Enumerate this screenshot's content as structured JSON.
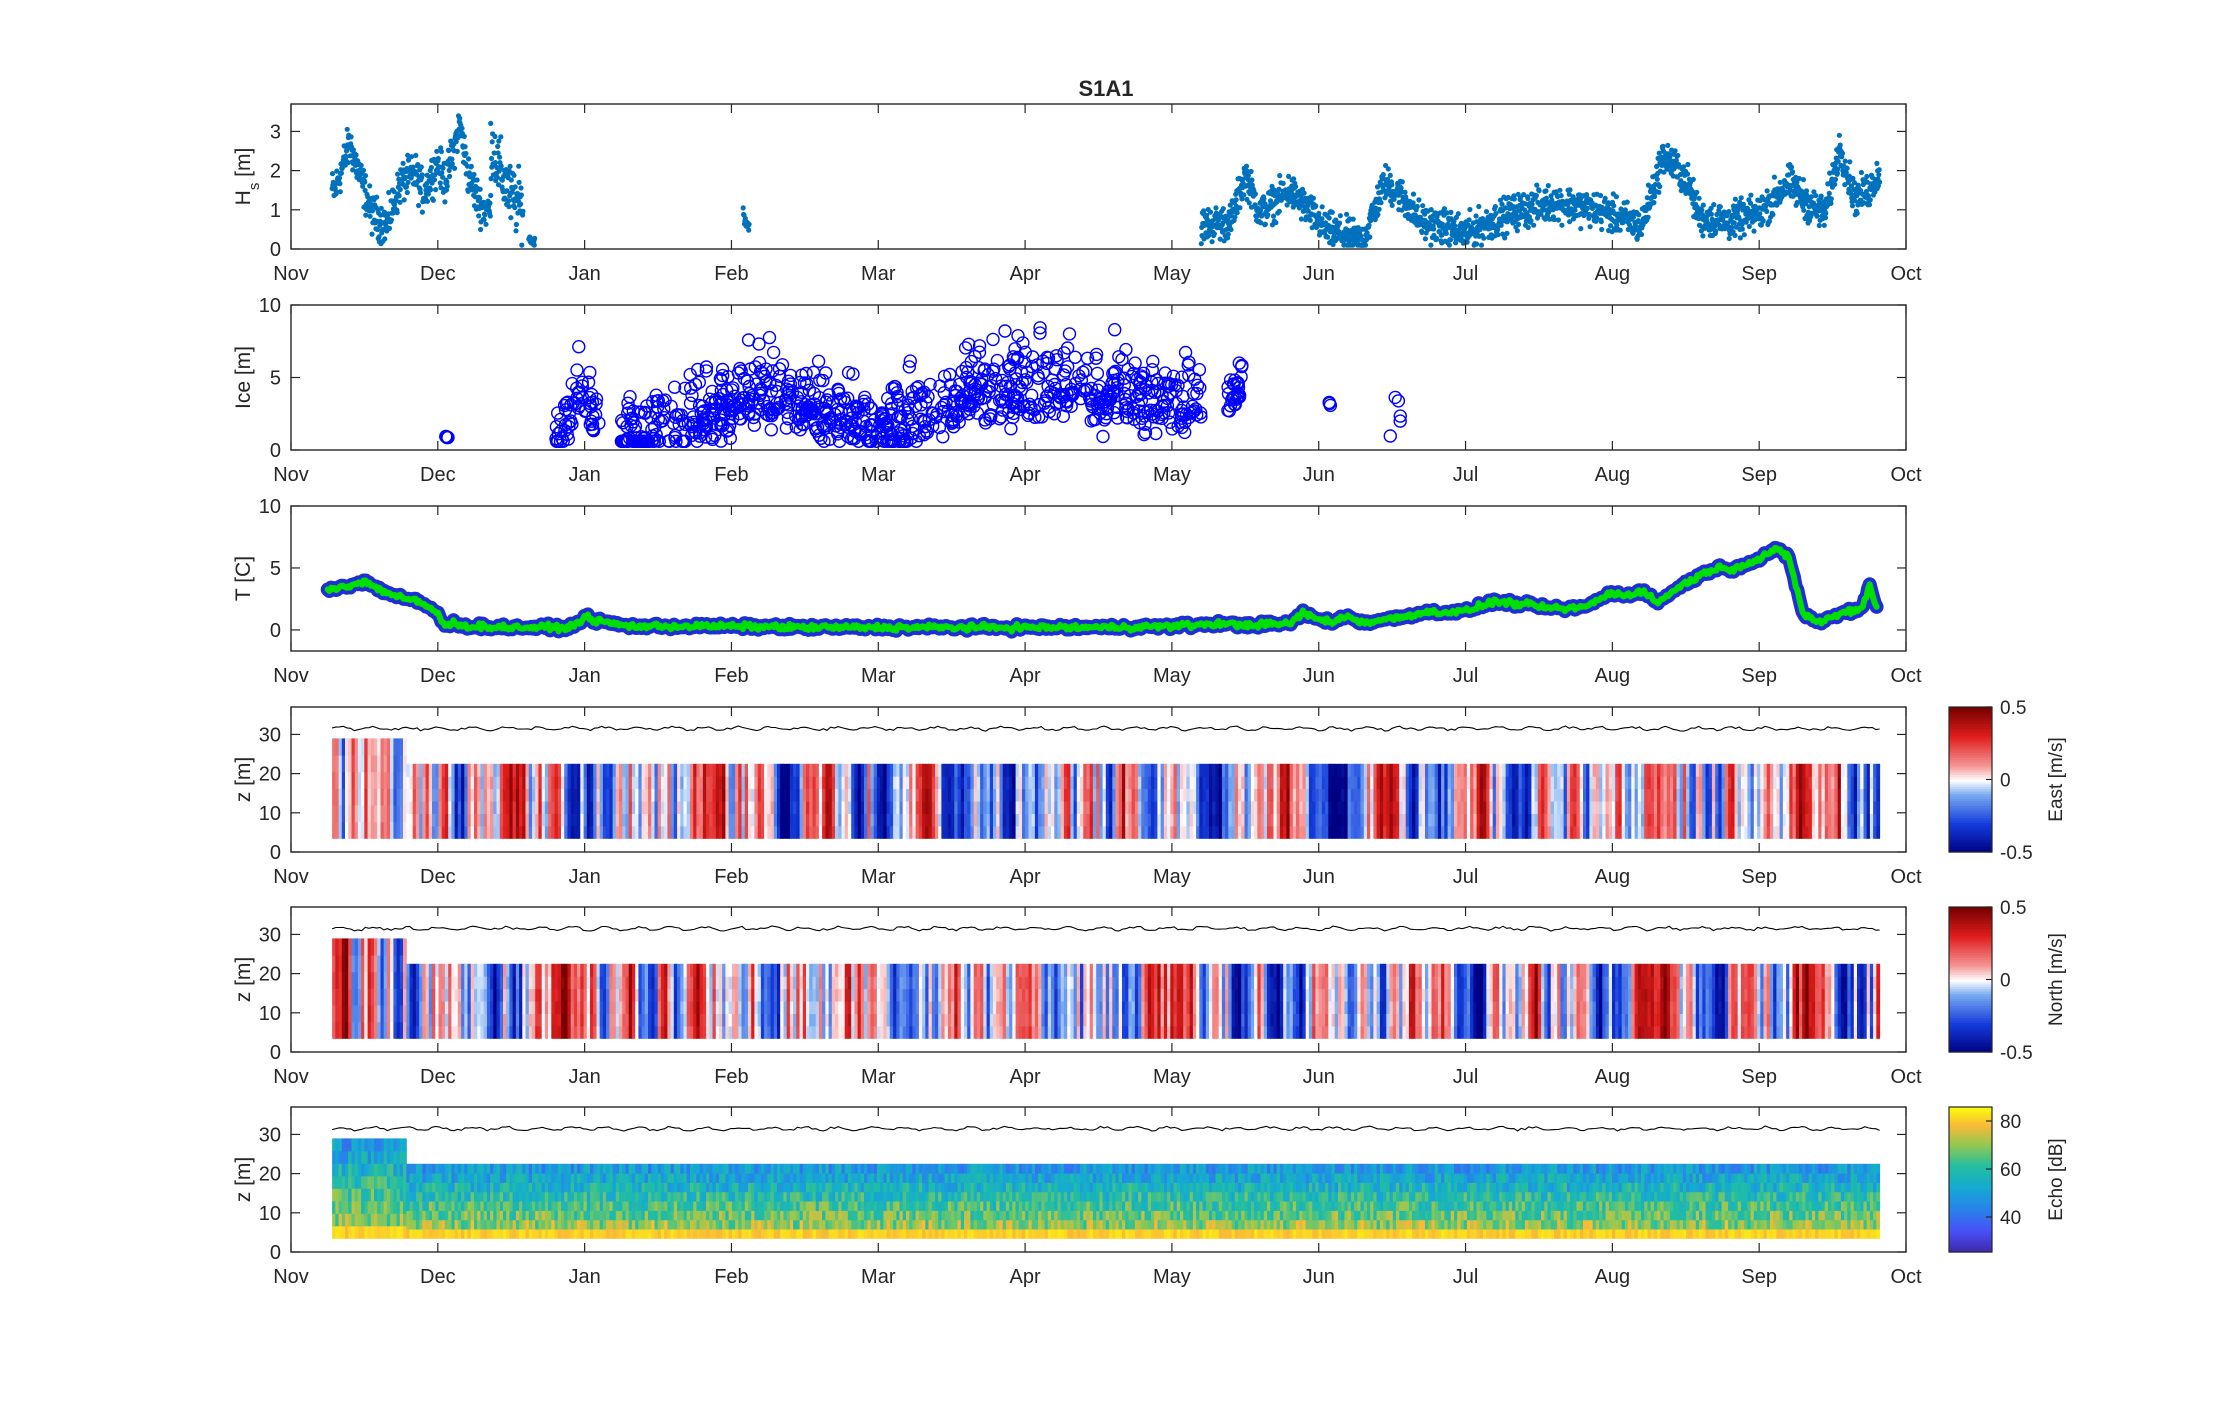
{
  "title": "S1A1",
  "months": [
    "Nov",
    "Dec",
    "Jan",
    "Feb",
    "Mar",
    "Apr",
    "May",
    "Jun",
    "Jul",
    "Aug",
    "Sep",
    "Oct"
  ],
  "colors": {
    "hs_points": "#0072BD",
    "ice_markers": "#0000FF",
    "temp_outline": "#1f2fd6",
    "temp_line": "#00e000",
    "surface_line": "#000000",
    "axis": "#262626"
  },
  "chart_data": [
    {
      "type": "scatter",
      "name": "hs",
      "ylabel_main": "H",
      "ylabel_sub": "s",
      "ylabel_unit": " [m]",
      "ylim": [
        0,
        3.7
      ],
      "yticks": [
        0,
        1,
        2,
        3
      ],
      "segments": [
        {
          "start": 0.28,
          "end": 1.36,
          "pts": [
            [
              0.3,
              1.5
            ],
            [
              0.4,
              2.7
            ],
            [
              0.55,
              0.9
            ],
            [
              0.65,
              0.6
            ],
            [
              0.75,
              1.7
            ],
            [
              0.85,
              1.9
            ],
            [
              0.9,
              1.4
            ],
            [
              1.0,
              2.2
            ],
            [
              1.05,
              1.7
            ],
            [
              1.1,
              2.4
            ],
            [
              1.15,
              3.2
            ],
            [
              1.2,
              2.0
            ],
            [
              1.28,
              1.2
            ],
            [
              1.32,
              1.0
            ]
          ],
          "noise": 0.25
        },
        {
          "start": 1.36,
          "end": 1.58,
          "pts": [
            [
              1.36,
              2.8
            ],
            [
              1.42,
              2.0
            ],
            [
              1.5,
              1.3
            ],
            [
              1.56,
              1.1
            ]
          ],
          "noise": 0.4
        },
        {
          "start": 1.62,
          "end": 1.66,
          "pts": [
            [
              1.62,
              0.25
            ],
            [
              1.65,
              0.2
            ]
          ],
          "noise": 0.05
        },
        {
          "start": 3.08,
          "end": 3.12,
          "pts": [
            [
              3.08,
              0.95
            ],
            [
              3.1,
              0.7
            ],
            [
              3.12,
              0.55
            ]
          ],
          "noise": 0.1
        },
        {
          "start": 6.2,
          "end": 10.82,
          "pts": [
            [
              6.2,
              0.6
            ],
            [
              6.4,
              0.7
            ],
            [
              6.5,
              1.9
            ],
            [
              6.6,
              0.9
            ],
            [
              6.8,
              1.5
            ],
            [
              6.9,
              1.1
            ],
            [
              7.05,
              0.5
            ],
            [
              7.3,
              0.2
            ],
            [
              7.45,
              1.7
            ],
            [
              7.55,
              1.4
            ],
            [
              7.7,
              0.7
            ],
            [
              8.0,
              0.4
            ],
            [
              8.3,
              0.9
            ],
            [
              8.6,
              1.2
            ],
            [
              8.9,
              1.0
            ],
            [
              9.2,
              0.6
            ],
            [
              9.35,
              2.4
            ],
            [
              9.5,
              1.8
            ],
            [
              9.6,
              0.8
            ],
            [
              9.8,
              0.7
            ],
            [
              10.0,
              0.9
            ],
            [
              10.2,
              1.7
            ],
            [
              10.35,
              1.1
            ],
            [
              10.45,
              0.9
            ],
            [
              10.55,
              2.6
            ],
            [
              10.65,
              1.3
            ],
            [
              10.75,
              1.5
            ],
            [
              10.82,
              2.0
            ]
          ],
          "noise": 0.22
        }
      ]
    },
    {
      "type": "scatter",
      "name": "ice",
      "ylabel": "Ice [m]",
      "ylim": [
        0,
        10
      ],
      "yticks": [
        0,
        5,
        10
      ],
      "segments": [
        {
          "start": 1.05,
          "end": 1.08,
          "pts": [
            [
              1.05,
              0.9
            ],
            [
              1.08,
              0.9
            ]
          ],
          "noise": 0.05,
          "density": 4
        },
        {
          "start": 1.8,
          "end": 2.1,
          "pts": [
            [
              1.8,
              0.8
            ],
            [
              1.9,
              2.0
            ],
            [
              1.95,
              4.5
            ],
            [
              2.05,
              2.5
            ],
            [
              2.1,
              1.5
            ]
          ],
          "noise": 1.2,
          "density": 60
        },
        {
          "start": 2.25,
          "end": 6.2,
          "pts": [
            [
              2.25,
              0.8
            ],
            [
              2.6,
              1.2
            ],
            [
              2.9,
              2.5
            ],
            [
              3.2,
              4.0
            ],
            [
              3.5,
              3.0
            ],
            [
              3.8,
              2.5
            ],
            [
              3.9,
              1.5
            ],
            [
              4.1,
              1.2
            ],
            [
              4.4,
              3.0
            ],
            [
              4.6,
              3.5
            ],
            [
              5.0,
              4.0
            ],
            [
              5.3,
              4.0
            ],
            [
              5.6,
              3.5
            ],
            [
              5.9,
              3.0
            ],
            [
              6.2,
              3.2
            ]
          ],
          "noise": 1.7,
          "density": 900
        },
        {
          "start": 6.38,
          "end": 6.48,
          "pts": [
            [
              6.38,
              3.0
            ],
            [
              6.48,
              4.5
            ]
          ],
          "noise": 1.0,
          "density": 30
        },
        {
          "start": 7.06,
          "end": 7.1,
          "pts": [
            [
              7.08,
              3.2
            ],
            [
              7.07,
              1.3
            ]
          ],
          "noise": 0.1,
          "density": 3
        },
        {
          "start": 7.48,
          "end": 7.56,
          "pts": [
            [
              7.48,
              0.8
            ],
            [
              7.53,
              4.2
            ],
            [
              7.56,
              1.8
            ]
          ],
          "noise": 0.3,
          "density": 5
        }
      ]
    },
    {
      "type": "line",
      "name": "temp",
      "ylabel": "T [C]",
      "ylim": [
        -1.7,
        10
      ],
      "yticks": [
        0,
        5,
        10
      ],
      "x": [
        0.25,
        0.4,
        0.5,
        0.6,
        0.7,
        0.85,
        0.95,
        1.0,
        1.05,
        1.1,
        1.2,
        1.5,
        1.9,
        2.0,
        2.1,
        2.3,
        2.6,
        3.0,
        3.5,
        4.0,
        4.5,
        5.0,
        5.5,
        6.0,
        6.3,
        6.5,
        6.8,
        6.9,
        7.0,
        7.1,
        7.2,
        7.3,
        7.5,
        7.7,
        8.0,
        8.2,
        8.5,
        8.6,
        8.8,
        9.0,
        9.1,
        9.2,
        9.3,
        9.5,
        9.7,
        9.8,
        9.9,
        10.0,
        10.1,
        10.2,
        10.3,
        10.4,
        10.6,
        10.7,
        10.75,
        10.8
      ],
      "y": [
        3.3,
        3.6,
        3.9,
        3.3,
        2.8,
        2.3,
        1.8,
        1.3,
        0.2,
        0.6,
        0.3,
        0.2,
        0.2,
        1.0,
        0.7,
        0.3,
        0.3,
        0.3,
        0.2,
        0.2,
        0.2,
        0.2,
        0.2,
        0.3,
        0.5,
        0.4,
        0.5,
        1.4,
        0.8,
        0.7,
        1.1,
        0.6,
        0.9,
        1.4,
        1.5,
        2.3,
        1.9,
        1.7,
        1.8,
        3.0,
        2.8,
        3.2,
        2.2,
        3.8,
        5.0,
        4.9,
        5.3,
        5.7,
        6.5,
        5.9,
        1.3,
        0.6,
        1.5,
        1.7,
        3.7,
        1.8
      ]
    },
    {
      "type": "heatmap",
      "name": "east",
      "ylabel": "z [m]",
      "ylim": [
        0,
        37
      ],
      "yticks": [
        0,
        10,
        20,
        30
      ],
      "colorbar_label": "East [m/s]",
      "colorbar_ticks": [
        "0.5",
        "0",
        "-0.5"
      ],
      "clim": [
        -0.5,
        0.5
      ],
      "cmap": "redblue",
      "x_start": 0.28,
      "x_end": 10.82,
      "top_bin_early": 29,
      "top_bin": 22.5,
      "early_end": 0.78,
      "bottom_bin": 3.5,
      "surface": 31.5
    },
    {
      "type": "heatmap",
      "name": "north",
      "ylabel": "z [m]",
      "ylim": [
        0,
        37
      ],
      "yticks": [
        0,
        10,
        20,
        30
      ],
      "colorbar_label": "North [m/s]",
      "colorbar_ticks": [
        "0.5",
        "0",
        "-0.5"
      ],
      "clim": [
        -0.5,
        0.5
      ],
      "cmap": "redblue",
      "x_start": 0.28,
      "x_end": 10.82,
      "top_bin_early": 29,
      "top_bin": 22.5,
      "early_end": 0.78,
      "bottom_bin": 3.5,
      "surface": 31.5
    },
    {
      "type": "heatmap",
      "name": "echo",
      "ylabel": "z [m]",
      "ylim": [
        0,
        37
      ],
      "yticks": [
        0,
        10,
        20,
        30
      ],
      "colorbar_label": "Echo [dB]",
      "colorbar_ticks": [
        "80",
        "60",
        "40"
      ],
      "clim": [
        24,
        86
      ],
      "cmap": "parula",
      "x_start": 0.28,
      "x_end": 10.82,
      "top_bin_early": 29,
      "top_bin": 22.5,
      "early_end": 0.78,
      "bottom_bin": 3.5,
      "surface": 31.5
    }
  ]
}
